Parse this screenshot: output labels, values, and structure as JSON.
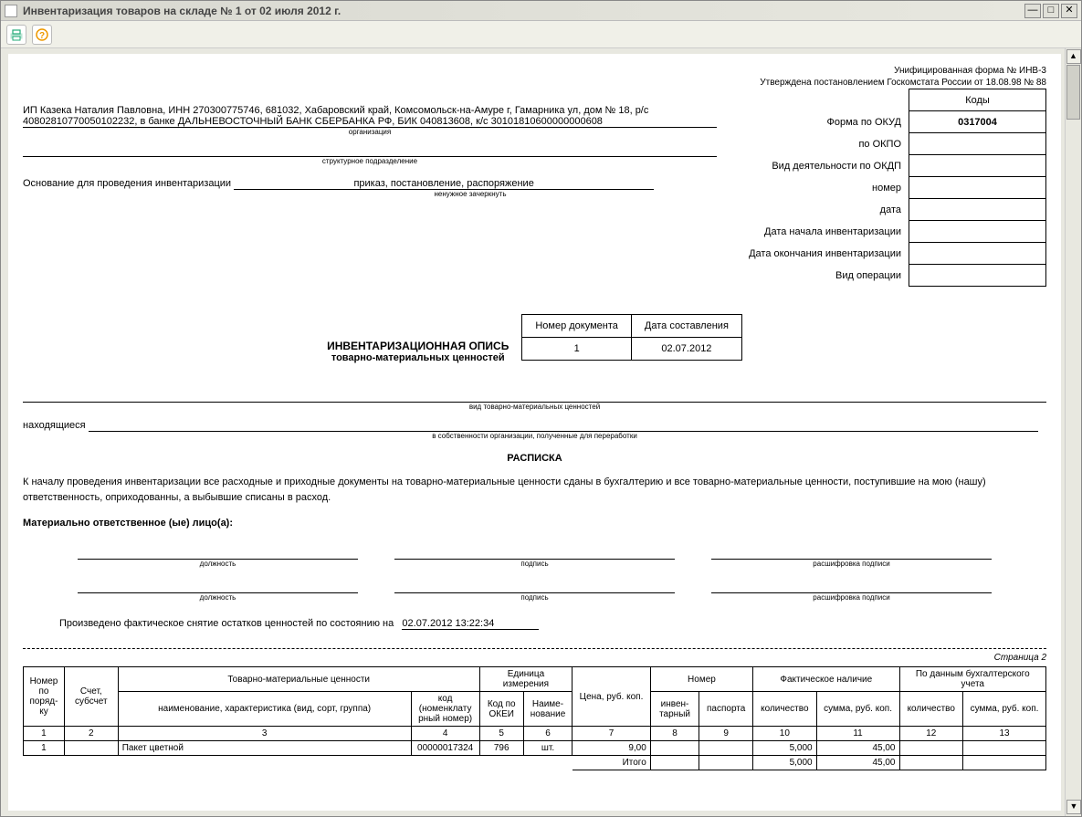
{
  "window": {
    "title": "Инвентаризация товаров на складе № 1 от 02 июля 2012 г."
  },
  "form_header": {
    "line1": "Унифицированная форма № ИНВ-3",
    "line2": "Утверждена постановлением Госкомстата России от 18.08.98 № 88"
  },
  "codes": {
    "header": "Коды",
    "okud_label": "Форма по ОКУД",
    "okud_value": "0317004",
    "okpo_label": "по ОКПО",
    "okpo_value": "",
    "okdp_label": "Вид деятельности по ОКДП",
    "okdp_value": "",
    "number_label": "номер",
    "number_value": "",
    "date_label": "дата",
    "date_value": "",
    "start_label": "Дата начала инвентаризации",
    "start_value": "",
    "end_label": "Дата окончания инвентаризации",
    "end_value": "",
    "oper_label": "Вид операции",
    "oper_value": ""
  },
  "org": {
    "text": "ИП Казека Наталия Павловна, ИНН 270300775746, 681032, Хабаровский край, Комсомольск-на-Амуре г, Гамарника ул, дом № 18, р/с 40802810770050102232, в банке ДАЛЬНЕВОСТОЧНЫЙ БАНК СБЕРБАНКА РФ, БИК 040813608, к/с 30101810600000000608",
    "caption": "организация",
    "subdiv_caption": "структурное подразделение"
  },
  "basis": {
    "label": "Основание для проведения инвентаризации",
    "value": "приказ, постановление, распоряжение",
    "caption": "ненужное зачеркнуть"
  },
  "doc_num": {
    "num_hdr": "Номер документа",
    "date_hdr": "Дата составления",
    "num": "1",
    "date": "02.07.2012"
  },
  "titles": {
    "main": "ИНВЕНТАРИЗАЦИОННАЯ ОПИСЬ",
    "sub": "товарно-материальных ценностей",
    "type_caption": "вид товарно-материальных ценностей",
    "located": "находящиеся",
    "located_caption": "в собственности организации, полученные для переработки",
    "receipt": "РАСПИСКА",
    "receipt_text": "К началу проведения инвентаризации все расходные и приходные документы на товарно-материальные ценности сданы в бухгалтерию и все товарно-материальные ценности, поступившие на мою (нашу) ответственность, оприходованны, а выбывшие списаны в расход.",
    "resp": "Материально ответственное (ые) лицо(а):",
    "sig_pos": "должность",
    "sig_sign": "подпись",
    "sig_name": "расшифровка подписи",
    "snapshot_label": "Произведено фактическое снятие остатков ценностей по состоянию на",
    "snapshot_value": "02.07.2012 13:22:34",
    "page": "Страница 2"
  },
  "table": {
    "h_num": "Номер по поряд- ку",
    "h_acct": "Счет, субсчет",
    "h_tmc": "Товарно-материальные ценности",
    "h_unit": "Единица измерения",
    "h_price": "Цена, руб. коп.",
    "h_number": "Номер",
    "h_actual": "Фактическое наличие",
    "h_book": "По данным бухгалтерского учета",
    "h_name": "наименование, характеристика (вид, сорт, группа)",
    "h_code": "код (номенклату рный номер)",
    "h_okei": "Код по ОКЕИ",
    "h_unitname": "Наиме- нование",
    "h_inv": "инвен- тарный",
    "h_pass": "паспорта",
    "h_qty": "количество",
    "h_sum": "сумма, руб. коп.",
    "cols": [
      "1",
      "2",
      "3",
      "4",
      "5",
      "6",
      "7",
      "8",
      "9",
      "10",
      "11",
      "12",
      "13"
    ],
    "rows": [
      {
        "n": "1",
        "acct": "",
        "name": "Пакет цветной",
        "code": "00000017324",
        "okei": "796",
        "unit": "шт.",
        "price": "9,00",
        "inv": "",
        "pass": "",
        "qty": "5,000",
        "sum": "45,00",
        "bqty": "",
        "bsum": ""
      }
    ],
    "total_label": "Итого",
    "total_qty": "5,000",
    "total_sum": "45,00"
  }
}
